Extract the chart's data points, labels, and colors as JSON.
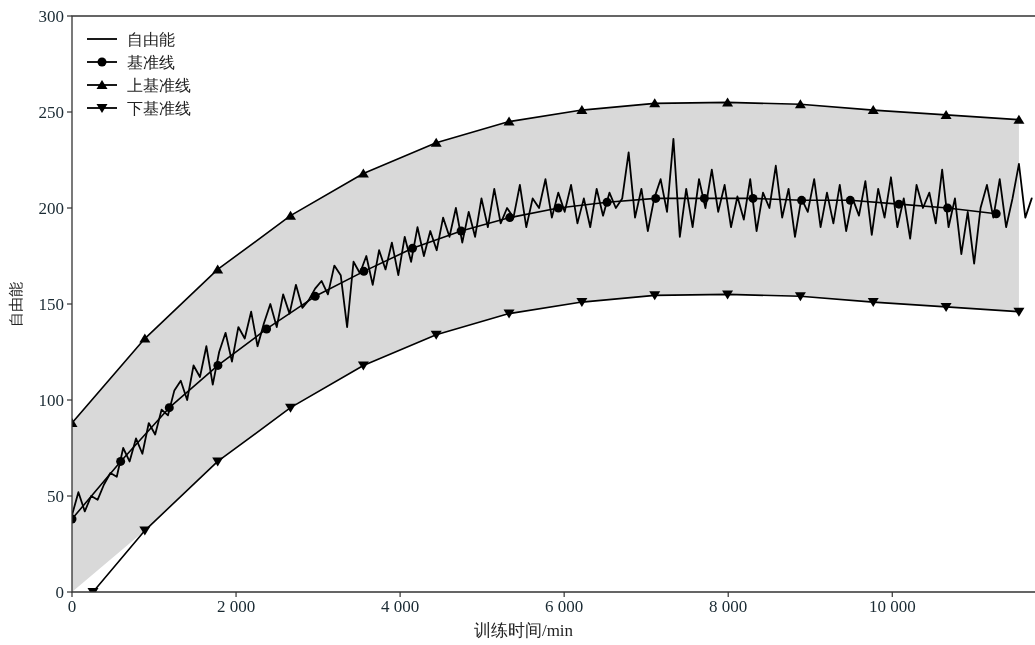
{
  "chart_data": {
    "type": "line",
    "xlabel": "训练时间/min",
    "ylabel": "自由能",
    "xlim": [
      0,
      11740
    ],
    "ylim": [
      0,
      300
    ],
    "xticks": [
      0,
      {
        "value": 2000,
        "label": "2 000"
      },
      {
        "value": 4000,
        "label": "4 000"
      },
      {
        "value": 6000,
        "label": "6 000"
      },
      {
        "value": 8000,
        "label": "8 000"
      },
      {
        "value": 10000,
        "label": "10 000"
      }
    ],
    "yticks": [
      0,
      50,
      100,
      150,
      200,
      250,
      300
    ],
    "legend": "top left",
    "grid": false,
    "line_style": "solid",
    "series": [
      {
        "name": "自由能",
        "color": "#000000",
        "marker": "none",
        "x": [
          0,
          78,
          156,
          234,
          312,
          390,
          468,
          546,
          624,
          702,
          780,
          858,
          936,
          1014,
          1092,
          1170,
          1248,
          1326,
          1404,
          1482,
          1560,
          1638,
          1716,
          1794,
          1872,
          1950,
          2028,
          2106,
          2184,
          2262,
          2340,
          2418,
          2496,
          2574,
          2652,
          2730,
          2808,
          2886,
          2964,
          3042,
          3120,
          3198,
          3276,
          3354,
          3432,
          3510,
          3588,
          3666,
          3744,
          3822,
          3900,
          3978,
          4056,
          4134,
          4212,
          4290,
          4368,
          4446,
          4524,
          4602,
          4680,
          4758,
          4836,
          4914,
          4992,
          5070,
          5148,
          5226,
          5304,
          5382,
          5460,
          5538,
          5616,
          5694,
          5772,
          5850,
          5928,
          6006,
          6084,
          6162,
          6240,
          6318,
          6396,
          6474,
          6552,
          6630,
          6708,
          6786,
          6864,
          6942,
          7020,
          7098,
          7176,
          7254,
          7332,
          7410,
          7488,
          7566,
          7644,
          7722,
          7800,
          7878,
          7956,
          8034,
          8112,
          8190,
          8268,
          8346,
          8424,
          8502,
          8580,
          8658,
          8736,
          8814,
          8892,
          8970,
          9048,
          9126,
          9204,
          9282,
          9360,
          9438,
          9516,
          9594,
          9672,
          9750,
          9828,
          9906,
          9984,
          10062,
          10140,
          10218,
          10296,
          10374,
          10452,
          10530,
          10608,
          10686,
          10764,
          10842,
          10920,
          10998,
          11076,
          11154,
          11232,
          11310,
          11388,
          11466,
          11544,
          11622,
          11700
        ],
        "values": [
          40,
          52,
          42,
          50,
          48,
          56,
          62,
          60,
          75,
          68,
          80,
          72,
          88,
          82,
          95,
          92,
          105,
          110,
          100,
          118,
          112,
          128,
          108,
          125,
          135,
          120,
          138,
          132,
          146,
          128,
          140,
          150,
          138,
          155,
          145,
          160,
          148,
          152,
          158,
          162,
          155,
          170,
          165,
          138,
          172,
          166,
          175,
          160,
          178,
          168,
          182,
          165,
          185,
          172,
          190,
          175,
          188,
          178,
          195,
          185,
          200,
          182,
          198,
          185,
          205,
          190,
          210,
          192,
          200,
          195,
          212,
          190,
          205,
          200,
          215,
          195,
          208,
          198,
          212,
          192,
          205,
          190,
          210,
          196,
          208,
          200,
          205,
          229,
          195,
          210,
          188,
          205,
          215,
          198,
          236,
          185,
          210,
          190,
          215,
          200,
          220,
          198,
          212,
          190,
          206,
          194,
          215,
          188,
          208,
          200,
          222,
          195,
          210,
          185,
          205,
          198,
          215,
          190,
          208,
          192,
          212,
          188,
          205,
          196,
          214,
          186,
          210,
          195,
          216,
          190,
          205,
          184,
          212,
          200,
          208,
          192,
          220,
          190,
          205,
          176,
          198,
          171,
          200,
          212,
          195,
          215,
          190,
          205,
          223,
          195,
          205
        ]
      },
      {
        "name": "基准线",
        "color": "#000000",
        "marker": "circle",
        "x": [
          0,
          593,
          1186,
          1779,
          2372,
          2965,
          3558,
          4151,
          4744,
          5337,
          5930,
          6523,
          7116,
          7709,
          8302,
          8895,
          9488,
          10081,
          10674,
          11267
        ],
        "values": [
          38,
          68,
          96,
          118,
          137,
          154,
          167,
          179,
          188,
          195,
          200,
          203,
          205,
          205,
          205,
          204,
          204,
          202,
          200,
          197
        ]
      },
      {
        "name": "上基准线",
        "color": "#000000",
        "marker": "triangle",
        "x": [
          0,
          888,
          1776,
          2664,
          3552,
          4440,
          5328,
          6216,
          7104,
          7992,
          8880,
          9768,
          10656,
          11544
        ],
        "values": [
          88,
          132,
          168,
          196,
          218,
          234,
          245,
          251,
          254.5,
          255,
          254,
          251,
          248.5,
          246
        ],
        "upper": [
          88,
          132,
          168,
          196,
          218,
          234,
          245,
          251,
          254.5,
          255,
          254,
          251,
          248.5,
          246
        ],
        "lower": [
          0,
          32,
          68,
          96,
          118,
          134,
          145,
          151,
          154.5,
          155,
          154,
          151,
          148.5,
          146
        ]
      },
      {
        "name": "下基准线",
        "color": "#000000",
        "marker": "triangle-down",
        "x": [
          256,
          888,
          1776,
          2664,
          3552,
          4440,
          5328,
          6216,
          7104,
          7992,
          8880,
          9768,
          10656,
          11544
        ],
        "values": [
          0,
          32,
          68,
          96,
          118,
          134,
          145,
          151,
          154.5,
          155,
          154,
          151,
          148.5,
          146
        ]
      }
    ]
  }
}
